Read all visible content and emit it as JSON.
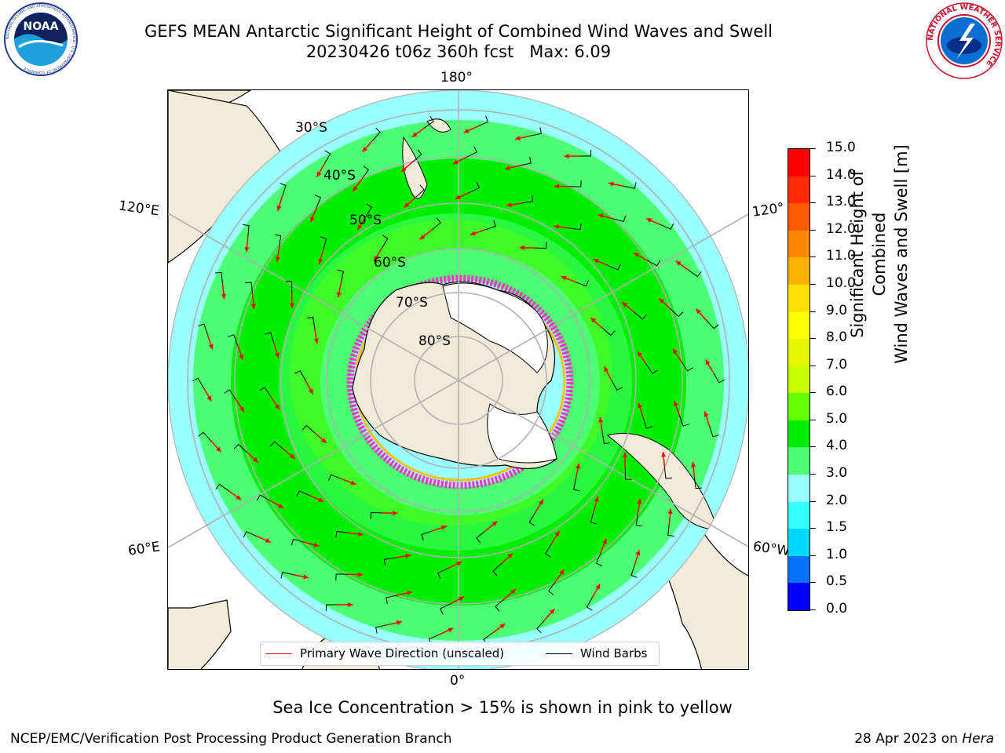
{
  "header": {
    "title_line1": "GEFS MEAN Antarctic Significant Height of Combined Wind Waves and Swell",
    "title_line2": "20230426 t06z 360h fcst   Max: 6.09"
  },
  "logos": {
    "left": {
      "name": "noaa-logo",
      "text": "NOAA",
      "ring_text": "NATIONAL OCEANIC AND ATMOSPHERIC ADMINISTRATION · U.S. DEPARTMENT OF COMMERCE"
    },
    "right": {
      "name": "nws-logo",
      "ring_text": "NATIONAL WEATHER SERVICE"
    }
  },
  "map": {
    "longitude_labels": {
      "top": "180°",
      "bottom": "0°",
      "upper_left": "120°E",
      "lower_left": "60°E",
      "upper_right": "120°",
      "lower_right": "60°W"
    },
    "latitude_labels": [
      "30°S",
      "40°S",
      "50°S",
      "60°S",
      "70°S",
      "80°S"
    ],
    "colors": {
      "land": "#efebd8",
      "ice": "#ffffff",
      "grid": "#b0b0b0",
      "arrow": "#ff0000",
      "barb": "#000000"
    }
  },
  "legend": {
    "primary_wave": "Primary Wave Direction (unscaled)",
    "wind_barbs": "Wind Barbs",
    "primary_wave_color": "#ff0000",
    "wind_barbs_color": "#000000"
  },
  "colorbar": {
    "title_line1": "Significant Height of Combined",
    "title_line2": "Wind Waves and Swell [m]",
    "ticks": [
      "0.0",
      "0.5",
      "1.0",
      "1.5",
      "2.0",
      "3.0",
      "4.0",
      "5.0",
      "6.0",
      "7.0",
      "8.0",
      "9.0",
      "10.0",
      "11.0",
      "12.0",
      "13.0",
      "14.0",
      "15.0"
    ],
    "colors": [
      "#0000ff",
      "#0072ff",
      "#00d9ff",
      "#33ffff",
      "#99ffff",
      "#4cff73",
      "#00ee00",
      "#66ff00",
      "#c8ff00",
      "#e6f500",
      "#ffff00",
      "#ffe000",
      "#ffb000",
      "#ff8800",
      "#ff5a00",
      "#ff2a00",
      "#ff0000"
    ]
  },
  "footnote": "Sea Ice Concentration > 15% is shown in pink to yellow",
  "credits": {
    "left": "NCEP/EMC/Verification Post Processing Product Generation Branch",
    "right_prefix": "28 Apr 2023 on ",
    "right_host": "Hera"
  }
}
